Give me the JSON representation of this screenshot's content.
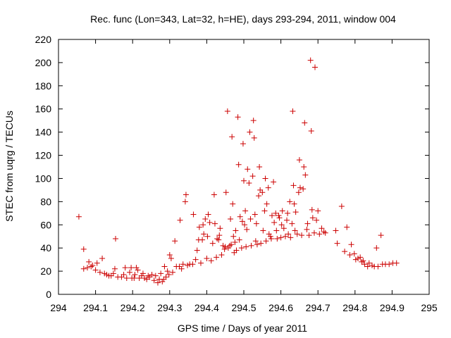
{
  "chart_data": {
    "type": "scatter",
    "title": "Rec. func (Lon=343, Lat=32, h=HE), days 293-294, 2011, window 004",
    "xlabel": "GPS time / Days of year 2011",
    "ylabel": "STEC from uqrg / TECUs",
    "xlim": [
      294,
      295
    ],
    "ylim": [
      0,
      220
    ],
    "x_ticks": [
      "294",
      "294.1",
      "294.2",
      "294.3",
      "294.4",
      "294.5",
      "294.6",
      "294.7",
      "294.8",
      "294.9",
      "295"
    ],
    "y_ticks": [
      "0",
      "20",
      "40",
      "60",
      "80",
      "100",
      "120",
      "140",
      "160",
      "180",
      "200",
      "220"
    ],
    "grid": false,
    "legend": "none",
    "marker": "plus",
    "color": "#cc0000",
    "series": [
      {
        "points": [
          [
            294.055,
            67
          ],
          [
            294.068,
            22
          ],
          [
            294.068,
            39
          ],
          [
            294.078,
            23
          ],
          [
            294.082,
            28
          ],
          [
            294.088,
            24
          ],
          [
            294.092,
            25
          ],
          [
            294.1,
            21
          ],
          [
            294.104,
            27
          ],
          [
            294.112,
            19
          ],
          [
            294.118,
            31
          ],
          [
            294.124,
            18
          ],
          [
            294.13,
            17
          ],
          [
            294.136,
            16
          ],
          [
            294.142,
            16
          ],
          [
            294.148,
            18
          ],
          [
            294.152,
            22
          ],
          [
            294.154,
            48
          ],
          [
            294.16,
            15
          ],
          [
            294.17,
            15
          ],
          [
            294.176,
            17
          ],
          [
            294.18,
            23
          ],
          [
            294.184,
            14
          ],
          [
            294.192,
            19
          ],
          [
            294.196,
            23
          ],
          [
            294.198,
            14
          ],
          [
            294.204,
            14
          ],
          [
            294.206,
            17
          ],
          [
            294.21,
            23
          ],
          [
            294.214,
            21
          ],
          [
            294.218,
            14
          ],
          [
            294.224,
            16
          ],
          [
            294.228,
            18
          ],
          [
            294.232,
            14
          ],
          [
            294.238,
            13
          ],
          [
            294.242,
            16
          ],
          [
            294.246,
            15
          ],
          [
            294.252,
            17
          ],
          [
            294.258,
            12
          ],
          [
            294.262,
            16
          ],
          [
            294.268,
            10
          ],
          [
            294.272,
            13
          ],
          [
            294.276,
            18
          ],
          [
            294.28,
            11
          ],
          [
            294.284,
            13
          ],
          [
            294.286,
            24
          ],
          [
            294.29,
            15
          ],
          [
            294.294,
            20
          ],
          [
            294.298,
            17
          ],
          [
            294.3,
            34
          ],
          [
            294.304,
            31
          ],
          [
            294.308,
            19
          ],
          [
            294.314,
            46
          ],
          [
            294.318,
            24
          ],
          [
            294.326,
            24
          ],
          [
            294.328,
            64
          ],
          [
            294.332,
            22
          ],
          [
            294.336,
            26
          ],
          [
            294.342,
            80
          ],
          [
            294.344,
            86
          ],
          [
            294.348,
            25
          ],
          [
            294.354,
            26
          ],
          [
            294.362,
            26
          ],
          [
            294.364,
            69
          ],
          [
            294.37,
            30
          ],
          [
            294.374,
            38
          ],
          [
            294.378,
            47
          ],
          [
            294.38,
            58
          ],
          [
            294.384,
            27
          ],
          [
            294.388,
            47
          ],
          [
            294.39,
            60
          ],
          [
            294.392,
            52
          ],
          [
            294.396,
            65
          ],
          [
            294.4,
            31
          ],
          [
            294.402,
            50
          ],
          [
            294.404,
            69
          ],
          [
            294.408,
            62
          ],
          [
            294.412,
            29
          ],
          [
            294.416,
            44
          ],
          [
            294.42,
            86
          ],
          [
            294.422,
            61
          ],
          [
            294.426,
            32
          ],
          [
            294.428,
            48
          ],
          [
            294.432,
            47
          ],
          [
            294.434,
            51
          ],
          [
            294.436,
            57
          ],
          [
            294.44,
            34
          ],
          [
            294.444,
            42
          ],
          [
            294.448,
            39
          ],
          [
            294.45,
            41
          ],
          [
            294.452,
            88
          ],
          [
            294.456,
            158
          ],
          [
            294.458,
            40
          ],
          [
            294.462,
            42
          ],
          [
            294.464,
            65
          ],
          [
            294.466,
            43
          ],
          [
            294.468,
            136
          ],
          [
            294.47,
            78
          ],
          [
            294.472,
            50
          ],
          [
            294.474,
            36
          ],
          [
            294.476,
            45
          ],
          [
            294.478,
            55
          ],
          [
            294.48,
            38
          ],
          [
            294.484,
            153
          ],
          [
            294.486,
            112
          ],
          [
            294.488,
            47
          ],
          [
            294.49,
            67
          ],
          [
            294.494,
            40
          ],
          [
            294.496,
            63
          ],
          [
            294.498,
            130
          ],
          [
            294.5,
            98
          ],
          [
            294.502,
            60
          ],
          [
            294.504,
            72
          ],
          [
            294.506,
            41
          ],
          [
            294.508,
            56
          ],
          [
            294.51,
            108
          ],
          [
            294.514,
            96
          ],
          [
            294.516,
            140
          ],
          [
            294.518,
            65
          ],
          [
            294.52,
            42
          ],
          [
            294.524,
            102
          ],
          [
            294.526,
            150
          ],
          [
            294.528,
            135
          ],
          [
            294.53,
            69
          ],
          [
            294.532,
            46
          ],
          [
            294.534,
            61
          ],
          [
            294.536,
            43
          ],
          [
            294.54,
            85
          ],
          [
            294.542,
            110
          ],
          [
            294.544,
            90
          ],
          [
            294.546,
            44
          ],
          [
            294.55,
            88
          ],
          [
            294.552,
            55
          ],
          [
            294.556,
            72
          ],
          [
            294.558,
            100
          ],
          [
            294.56,
            46
          ],
          [
            294.562,
            78
          ],
          [
            294.566,
            92
          ],
          [
            294.568,
            52
          ],
          [
            294.572,
            50
          ],
          [
            294.574,
            48
          ],
          [
            294.576,
            68
          ],
          [
            294.58,
            97
          ],
          [
            294.582,
            62
          ],
          [
            294.586,
            70
          ],
          [
            294.588,
            55
          ],
          [
            294.59,
            48
          ],
          [
            294.594,
            68
          ],
          [
            294.596,
            66
          ],
          [
            294.6,
            49
          ],
          [
            294.602,
            60
          ],
          [
            294.604,
            72
          ],
          [
            294.608,
            57
          ],
          [
            294.612,
            50
          ],
          [
            294.616,
            64
          ],
          [
            294.618,
            70
          ],
          [
            294.62,
            52
          ],
          [
            294.624,
            80
          ],
          [
            294.626,
            49
          ],
          [
            294.63,
            61
          ],
          [
            294.632,
            158
          ],
          [
            294.634,
            94
          ],
          [
            294.636,
            78
          ],
          [
            294.638,
            55
          ],
          [
            294.64,
            71
          ],
          [
            294.644,
            52
          ],
          [
            294.648,
            88
          ],
          [
            294.65,
            116
          ],
          [
            294.652,
            92
          ],
          [
            294.656,
            51
          ],
          [
            294.66,
            91
          ],
          [
            294.662,
            110
          ],
          [
            294.664,
            148
          ],
          [
            294.666,
            103
          ],
          [
            294.67,
            56
          ],
          [
            294.672,
            61
          ],
          [
            294.676,
            51
          ],
          [
            294.68,
            202
          ],
          [
            294.682,
            141
          ],
          [
            294.684,
            73
          ],
          [
            294.686,
            66
          ],
          [
            294.69,
            53
          ],
          [
            294.692,
            196
          ],
          [
            294.696,
            64
          ],
          [
            294.7,
            72
          ],
          [
            294.704,
            52
          ],
          [
            294.71,
            57
          ],
          [
            294.716,
            54
          ],
          [
            294.72,
            53
          ],
          [
            294.748,
            55
          ],
          [
            294.752,
            44
          ],
          [
            294.764,
            76
          ],
          [
            294.772,
            37
          ],
          [
            294.778,
            58
          ],
          [
            294.786,
            34
          ],
          [
            294.79,
            43
          ],
          [
            294.798,
            35
          ],
          [
            294.802,
            30
          ],
          [
            294.808,
            31
          ],
          [
            294.814,
            32
          ],
          [
            294.818,
            28
          ],
          [
            294.822,
            29
          ],
          [
            294.826,
            26
          ],
          [
            294.834,
            24
          ],
          [
            294.838,
            27
          ],
          [
            294.846,
            25
          ],
          [
            294.852,
            24
          ],
          [
            294.858,
            40
          ],
          [
            294.862,
            24
          ],
          [
            294.87,
            51
          ],
          [
            294.874,
            26
          ],
          [
            294.882,
            26
          ],
          [
            294.892,
            26
          ],
          [
            294.902,
            27
          ],
          [
            294.912,
            27
          ]
        ]
      }
    ]
  }
}
